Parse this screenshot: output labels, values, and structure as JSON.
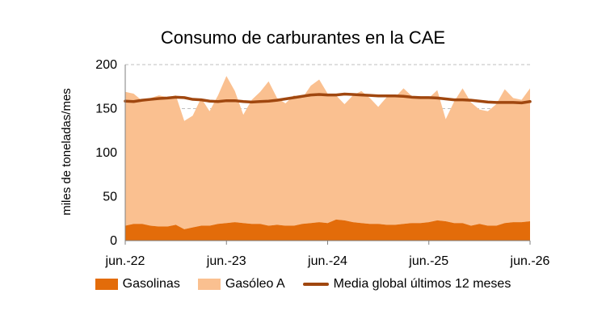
{
  "colors": {
    "gasolinas": "#e36c0a",
    "gasoleo": "#fac090",
    "media": "#a0470f",
    "grid": "#bfbfbf",
    "axis": "#7f7f7f"
  },
  "chart_data": {
    "type": "area",
    "title": "Consumo de carburantes en la CAE",
    "ylabel": "miles de toneladas/mes",
    "xlabel": "",
    "ylim": [
      0,
      200
    ],
    "yticks": [
      0,
      50,
      100,
      150,
      200
    ],
    "grid": "horizontal dashed",
    "legend_position": "bottom",
    "x_start": "2022-06",
    "x_end": "2026-06",
    "x_tick_labels": [
      "jun.-22",
      "jun.-23",
      "jun.-24",
      "jun.-25",
      "jun.-26"
    ],
    "stacked": true,
    "series": [
      {
        "name": "Gasolinas",
        "kind": "area",
        "values": [
          17,
          19,
          19,
          17,
          16,
          16,
          18,
          13,
          15,
          17,
          17,
          19,
          20,
          21,
          20,
          19,
          19,
          17,
          18,
          17,
          17,
          19,
          20,
          21,
          20,
          24,
          23,
          21,
          20,
          19,
          19,
          18,
          18,
          19,
          20,
          20,
          21,
          23,
          22,
          20,
          20,
          17,
          19,
          17,
          17,
          20,
          21,
          21,
          22
        ]
      },
      {
        "name": "Gasóleo A",
        "kind": "area",
        "total_values": [
          169,
          167,
          159,
          162,
          165,
          163,
          165,
          136,
          142,
          162,
          147,
          165,
          187,
          170,
          143,
          160,
          169,
          181,
          162,
          156,
          165,
          162,
          176,
          183,
          167,
          165,
          155,
          165,
          170,
          162,
          152,
          163,
          163,
          173,
          164,
          164,
          162,
          171,
          138,
          158,
          173,
          157,
          149,
          147,
          155,
          172,
          162,
          160,
          173
        ]
      },
      {
        "name": "Media global últimos 12 meses",
        "kind": "line",
        "values": [
          158.5,
          158,
          159.5,
          160.5,
          161.5,
          162,
          163,
          162.5,
          160.5,
          160,
          158.5,
          158,
          159,
          159,
          158,
          157.5,
          158,
          158.5,
          159.5,
          161,
          162.5,
          164,
          165.5,
          166,
          165.5,
          165.5,
          166.5,
          166,
          165.5,
          165,
          164.5,
          164.5,
          164.5,
          164,
          163,
          162.5,
          162.5,
          162,
          161,
          160,
          160,
          159.5,
          158.5,
          157.5,
          157,
          157,
          157,
          156.5,
          158
        ]
      }
    ]
  }
}
